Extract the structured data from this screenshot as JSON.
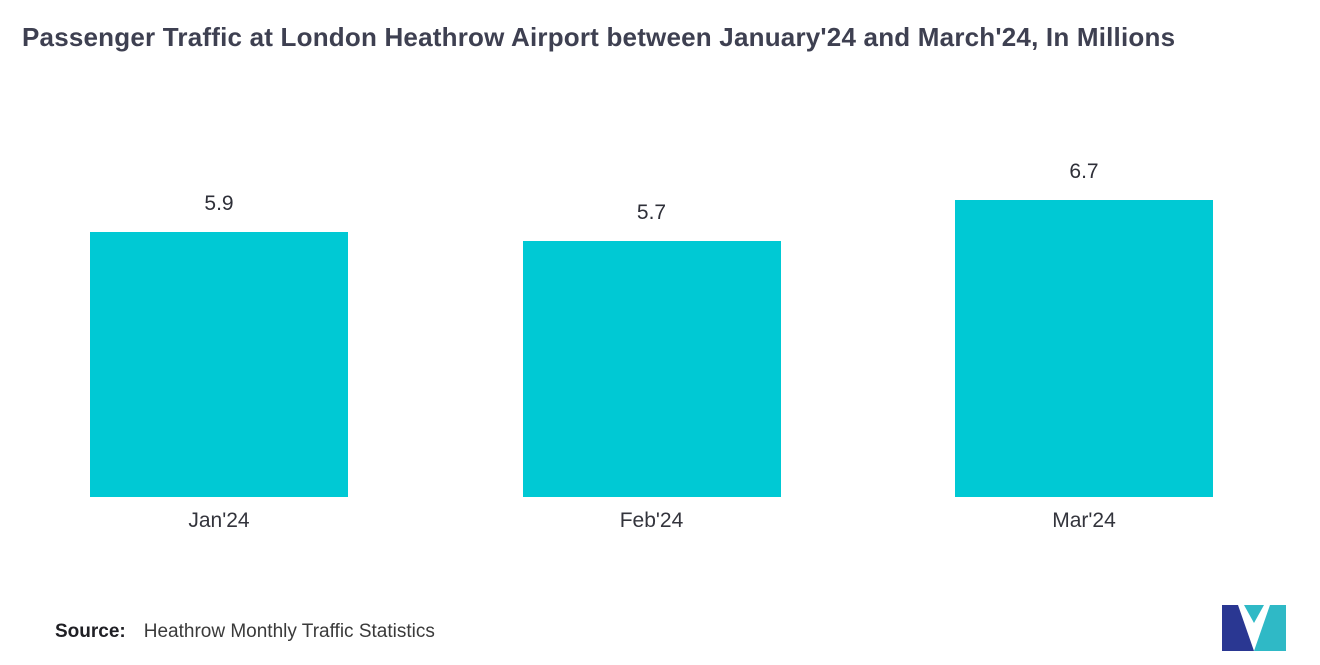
{
  "chart_data": {
    "type": "bar",
    "title": "Passenger Traffic at London Heathrow Airport between January'24 and March'24, In Millions",
    "categories": [
      "Jan'24",
      "Feb'24",
      "Mar'24"
    ],
    "values": [
      5.9,
      5.7,
      6.7
    ],
    "value_labels": [
      "5.9",
      "5.7",
      "6.7"
    ],
    "ylim": [
      0,
      7.5
    ],
    "xlabel": "",
    "ylabel": "",
    "grid": false,
    "legend": false,
    "bar_color": "#00c9d4"
  },
  "source": {
    "label": "Source:",
    "text": "Heathrow Monthly Traffic Statistics"
  },
  "logo": {
    "colors": [
      "#2a3792",
      "#2fb9c6"
    ]
  }
}
